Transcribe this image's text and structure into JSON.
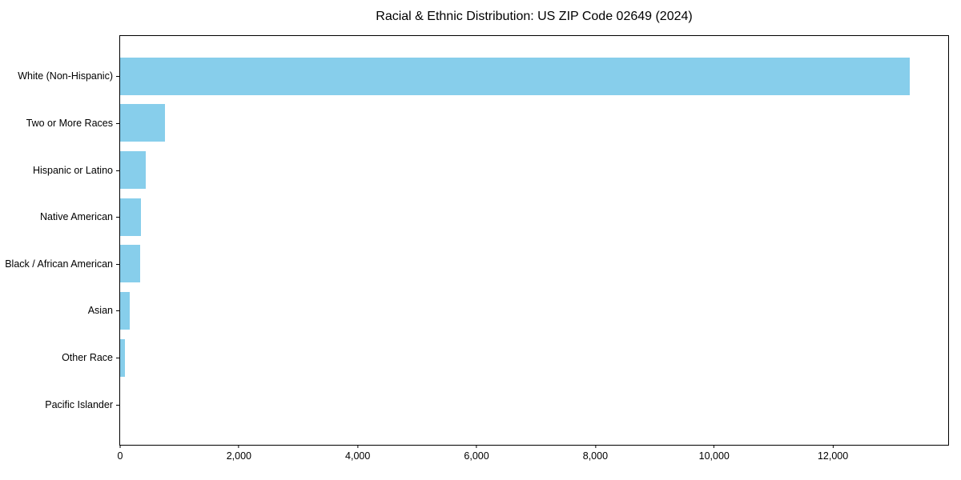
{
  "chart_data": {
    "type": "bar",
    "orientation": "horizontal",
    "title": "Racial & Ethnic Distribution: US ZIP Code 02649 (2024)",
    "categories": [
      "White (Non-Hispanic)",
      "Two or More Races",
      "Hispanic or Latino",
      "Native American",
      "Black / African American",
      "Asian",
      "Other Race",
      "Pacific Islander"
    ],
    "values": [
      13290,
      750,
      430,
      350,
      340,
      160,
      75,
      0
    ],
    "xlabel": "",
    "ylabel": "",
    "xlim": [
      0,
      13940
    ],
    "x_ticks": [
      0,
      2000,
      4000,
      6000,
      8000,
      10000,
      12000
    ],
    "x_tick_labels": [
      "0",
      "2,000",
      "4,000",
      "6,000",
      "8,000",
      "10,000",
      "12,000"
    ],
    "bar_color": "#87ceeb",
    "axis_color": "#000000",
    "grid": false,
    "legend": null
  }
}
